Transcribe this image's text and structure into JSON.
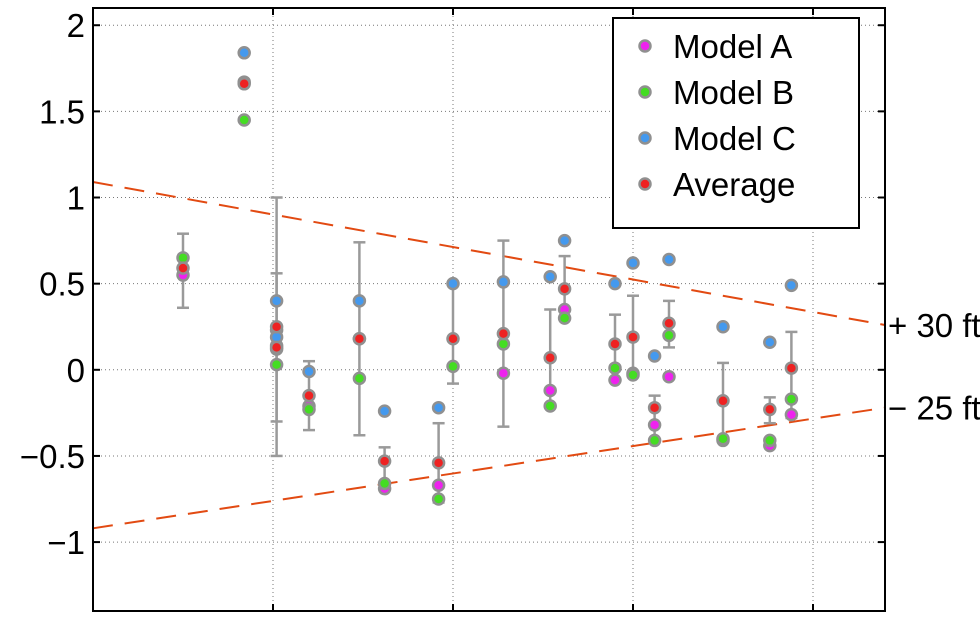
{
  "chart_data": {
    "type": "scatter",
    "title": "",
    "xlabel": "",
    "ylabel": "",
    "xlim": [
      0,
      22
    ],
    "ylim": [
      -1.4,
      2.1
    ],
    "grid": true,
    "legend_position": "top-right",
    "yticks": [
      {
        "value": 2,
        "label": "2"
      },
      {
        "value": 1.5,
        "label": "1.5"
      },
      {
        "value": 1,
        "label": "1"
      },
      {
        "value": 0.5,
        "label": "0.5"
      },
      {
        "value": 0,
        "label": "0"
      },
      {
        "value": -0.5,
        "label": "−0.5"
      },
      {
        "value": -1,
        "label": "−1"
      }
    ],
    "xgrid": [
      5,
      10,
      15,
      20
    ],
    "colors": {
      "Model A": "#ee22ee",
      "Model B": "#44dd22",
      "Model C": "#4499ee",
      "Average": "#ee2222",
      "point_edge": "#909090",
      "errorbar": "#9a9a9a",
      "dashed": "#e24a12",
      "grid": "#777777"
    },
    "series": [
      {
        "name": "Model A",
        "points": [
          [
            2.5,
            0.55
          ],
          [
            4.2,
            1.67
          ],
          [
            5.1,
            0.14
          ],
          [
            5.1,
            0.23
          ],
          [
            6.0,
            -0.21
          ],
          [
            7.4,
            0.18
          ],
          [
            8.1,
            -0.69
          ],
          [
            9.6,
            -0.67
          ],
          [
            11.4,
            -0.02
          ],
          [
            12.7,
            -0.12
          ],
          [
            13.1,
            0.35
          ],
          [
            14.5,
            -0.06
          ],
          [
            15.0,
            -0.02
          ],
          [
            15.6,
            -0.32
          ],
          [
            16.0,
            -0.04
          ],
          [
            17.5,
            -0.41
          ],
          [
            18.8,
            -0.44
          ],
          [
            19.4,
            -0.26
          ]
        ]
      },
      {
        "name": "Model B",
        "points": [
          [
            2.5,
            0.65
          ],
          [
            4.2,
            1.45
          ],
          [
            5.1,
            0.03
          ],
          [
            5.1,
            0.12
          ],
          [
            6.0,
            -0.23
          ],
          [
            7.4,
            -0.05
          ],
          [
            8.1,
            -0.66
          ],
          [
            9.6,
            -0.75
          ],
          [
            10.0,
            0.02
          ],
          [
            11.4,
            0.15
          ],
          [
            12.7,
            -0.21
          ],
          [
            13.1,
            0.3
          ],
          [
            14.5,
            0.01
          ],
          [
            15.0,
            -0.03
          ],
          [
            15.6,
            -0.41
          ],
          [
            16.0,
            0.2
          ],
          [
            17.5,
            -0.4
          ],
          [
            18.8,
            -0.41
          ],
          [
            19.4,
            -0.17
          ]
        ]
      },
      {
        "name": "Model C",
        "points": [
          [
            4.2,
            1.84
          ],
          [
            5.1,
            0.19
          ],
          [
            5.1,
            0.4
          ],
          [
            6.0,
            -0.01
          ],
          [
            7.4,
            0.4
          ],
          [
            8.1,
            -0.24
          ],
          [
            9.6,
            -0.22
          ],
          [
            10.0,
            0.5
          ],
          [
            11.4,
            0.51
          ],
          [
            12.7,
            0.54
          ],
          [
            13.1,
            0.75
          ],
          [
            14.5,
            0.5
          ],
          [
            15.0,
            0.62
          ],
          [
            15.6,
            0.08
          ],
          [
            16.0,
            0.64
          ],
          [
            17.5,
            0.25
          ],
          [
            18.8,
            0.16
          ],
          [
            19.4,
            0.49
          ]
        ]
      },
      {
        "name": "Average",
        "points": [
          [
            2.5,
            0.59
          ],
          [
            4.2,
            1.66
          ],
          [
            5.1,
            0.13
          ],
          [
            5.1,
            0.25
          ],
          [
            6.0,
            -0.15
          ],
          [
            7.4,
            0.18
          ],
          [
            8.1,
            -0.53
          ],
          [
            9.6,
            -0.54
          ],
          [
            10.0,
            0.18
          ],
          [
            11.4,
            0.21
          ],
          [
            12.7,
            0.07
          ],
          [
            13.1,
            0.47
          ],
          [
            14.5,
            0.15
          ],
          [
            15.0,
            0.19
          ],
          [
            15.6,
            -0.22
          ],
          [
            16.0,
            0.27
          ],
          [
            17.5,
            -0.18
          ],
          [
            18.8,
            -0.23
          ],
          [
            19.4,
            0.01
          ]
        ]
      }
    ],
    "errorbars": [
      {
        "x": 2.5,
        "low": 0.36,
        "high": 0.79
      },
      {
        "x": 5.1,
        "low": -0.3,
        "high": 0.56
      },
      {
        "x": 5.1,
        "low": -0.5,
        "high": 1.0
      },
      {
        "x": 6.0,
        "low": -0.35,
        "high": 0.05
      },
      {
        "x": 7.4,
        "low": -0.38,
        "high": 0.74
      },
      {
        "x": 8.1,
        "low": -0.7,
        "high": -0.45
      },
      {
        "x": 9.6,
        "low": -0.77,
        "high": -0.31
      },
      {
        "x": 10.0,
        "low": -0.08,
        "high": 0.5
      },
      {
        "x": 11.4,
        "low": -0.33,
        "high": 0.75
      },
      {
        "x": 12.7,
        "low": -0.21,
        "high": 0.35
      },
      {
        "x": 13.1,
        "low": 0.3,
        "high": 0.66
      },
      {
        "x": 14.5,
        "low": -0.07,
        "high": 0.32
      },
      {
        "x": 15.0,
        "low": -0.03,
        "high": 0.43
      },
      {
        "x": 15.6,
        "low": -0.41,
        "high": -0.15
      },
      {
        "x": 16.0,
        "low": 0.13,
        "high": 0.4
      },
      {
        "x": 17.5,
        "low": -0.4,
        "high": 0.04
      },
      {
        "x": 18.8,
        "low": -0.31,
        "high": -0.16
      },
      {
        "x": 19.4,
        "low": -0.28,
        "high": 0.22
      }
    ],
    "lines": [
      {
        "label": "+ 30 ft",
        "from": [
          0,
          1.09
        ],
        "to": [
          22,
          0.26
        ]
      },
      {
        "label": "− 25 ft",
        "from": [
          0,
          -0.92
        ],
        "to": [
          22,
          -0.22
        ]
      }
    ]
  }
}
